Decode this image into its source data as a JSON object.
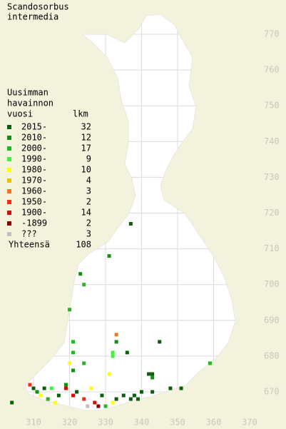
{
  "title": [
    "Scandosorbus",
    "intermedia"
  ],
  "legend": {
    "heading": [
      "Uusimman",
      "havainnon",
      "vuosi"
    ],
    "count_heading": "lkm",
    "entries": [
      {
        "label": "2015-",
        "count": 32,
        "color": "#0b5e0b",
        "points": [
          [
            337,
            717
          ],
          [
            336,
            681
          ],
          [
            345,
            684
          ],
          [
            342,
            675
          ],
          [
            343,
            675
          ],
          [
            351,
            671
          ],
          [
            304,
            667
          ],
          [
            310,
            671
          ],
          [
            313,
            671
          ],
          [
            317,
            669
          ],
          [
            322,
            670
          ],
          [
            333,
            668
          ],
          [
            335,
            669
          ],
          [
            337,
            668
          ],
          [
            338,
            669
          ],
          [
            339,
            668
          ],
          [
            340,
            670
          ],
          [
            343,
            670
          ],
          [
            348,
            671
          ],
          [
            329,
            669
          ]
        ]
      },
      {
        "label": "2010-",
        "count": 12,
        "color": "#119011",
        "points": [
          [
            331,
            708
          ],
          [
            323,
            703
          ],
          [
            333,
            684
          ],
          [
            343,
            674
          ],
          [
            311,
            670
          ],
          [
            319,
            672
          ],
          [
            321,
            676
          ]
        ]
      },
      {
        "label": "2000-",
        "count": 17,
        "color": "#22b822",
        "points": [
          [
            324,
            700
          ],
          [
            320,
            693
          ],
          [
            321,
            684
          ],
          [
            321,
            681
          ],
          [
            324,
            678
          ],
          [
            359,
            678
          ],
          [
            314,
            668
          ],
          [
            330,
            666
          ]
        ]
      },
      {
        "label": "1990-",
        "count": 9,
        "color": "#44ee44",
        "points": [
          [
            332,
            681
          ],
          [
            332,
            680
          ],
          [
            315,
            671
          ]
        ]
      },
      {
        "label": "1980-",
        "count": 10,
        "color": "#ffff00",
        "points": [
          [
            320,
            678
          ],
          [
            331,
            675
          ],
          [
            312,
            669
          ],
          [
            316,
            667
          ],
          [
            326,
            671
          ],
          [
            332,
            667
          ]
        ]
      },
      {
        "label": "1970-",
        "count": 4,
        "color": "#f0c000",
        "points": []
      },
      {
        "label": "1960-",
        "count": 3,
        "color": "#f07820",
        "points": [
          [
            333,
            686
          ]
        ]
      },
      {
        "label": "1950-",
        "count": 2,
        "color": "#f03010",
        "points": [
          [
            309,
            672
          ],
          [
            324,
            668
          ]
        ]
      },
      {
        "label": "1900-",
        "count": 14,
        "color": "#cc1010",
        "points": [
          [
            319,
            671
          ],
          [
            321,
            669
          ],
          [
            327,
            667
          ]
        ]
      },
      {
        "label": "-1899",
        "count": 2,
        "color": "#880000",
        "points": [
          [
            328,
            666
          ]
        ]
      },
      {
        "label": "???",
        "count": 3,
        "color": "#c0c0c0",
        "points": [
          [
            325,
            666
          ]
        ]
      }
    ],
    "total_label": "Yhteensä",
    "total": 108
  },
  "northing_ticks": [
    770,
    760,
    750,
    740,
    730,
    720,
    710,
    700,
    690,
    680,
    670
  ],
  "easting_ticks": [
    310,
    320,
    330,
    340,
    350,
    360,
    370
  ]
}
